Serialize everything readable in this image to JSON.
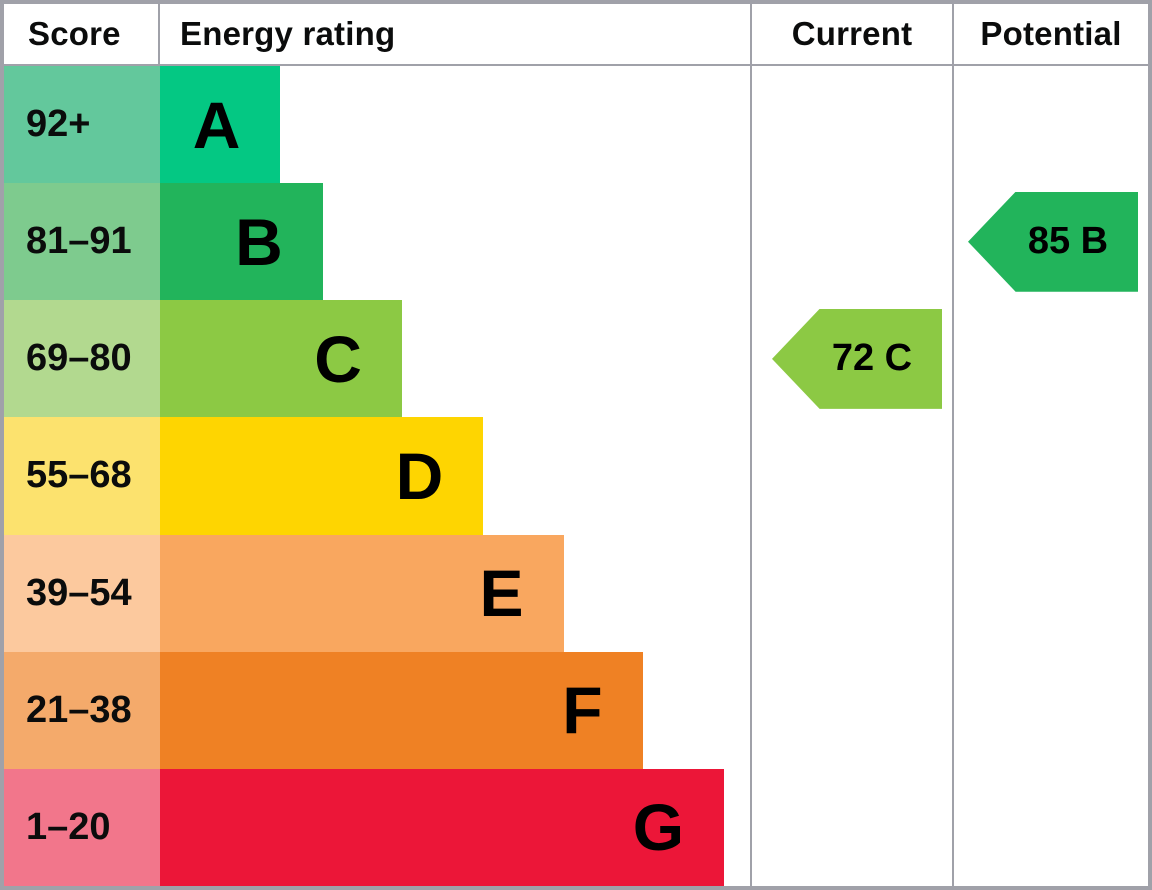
{
  "headers": {
    "score": "Score",
    "rating": "Energy rating",
    "current": "Current",
    "potential": "Potential"
  },
  "bands": [
    {
      "label": "A",
      "score": "92+",
      "bar_color": "#04c883",
      "score_cell_color": "#63c89c",
      "bar_width_pct": 20.4
    },
    {
      "label": "B",
      "score": "81–91",
      "bar_color": "#22b45b",
      "score_cell_color": "#7ecb8e",
      "bar_width_pct": 27.6
    },
    {
      "label": "C",
      "score": "69–80",
      "bar_color": "#8cc944",
      "score_cell_color": "#b2d98f",
      "bar_width_pct": 41.0
    },
    {
      "label": "D",
      "score": "55–68",
      "bar_color": "#fed501",
      "score_cell_color": "#fce26e",
      "bar_width_pct": 54.8
    },
    {
      "label": "E",
      "score": "39–54",
      "bar_color": "#f9a75f",
      "score_cell_color": "#fcc99e",
      "bar_width_pct": 68.4
    },
    {
      "label": "F",
      "score": "21–38",
      "bar_color": "#ef8124",
      "score_cell_color": "#f4aa6b",
      "bar_width_pct": 81.8
    },
    {
      "label": "G",
      "score": "1–20",
      "bar_color": "#ec1638",
      "score_cell_color": "#f2768b",
      "bar_width_pct": 95.6
    }
  ],
  "arrows": {
    "current": {
      "value": "72 C",
      "color": "#8cc944",
      "band": "C",
      "row_index": 2
    },
    "potential": {
      "value": "85 B",
      "color": "#22b45b",
      "band": "B",
      "row_index": 1
    }
  },
  "border_color": "#a0a1a9",
  "chart_data": {
    "type": "bar",
    "title": "Energy rating",
    "categories": [
      "A",
      "B",
      "C",
      "D",
      "E",
      "F",
      "G"
    ],
    "score_ranges": [
      "92+",
      "81–91",
      "69–80",
      "55–68",
      "39–54",
      "21–38",
      "1–20"
    ],
    "bar_colors": [
      "#04c883",
      "#22b45b",
      "#8cc944",
      "#fed501",
      "#f9a75f",
      "#ef8124",
      "#ec1638"
    ],
    "bar_lengths_pct": [
      20.4,
      27.6,
      41.0,
      54.8,
      68.4,
      81.8,
      95.6
    ],
    "markers": [
      {
        "column": "Current",
        "score": 72,
        "rating": "C"
      },
      {
        "column": "Potential",
        "score": 85,
        "rating": "B"
      }
    ],
    "legend_position": "none",
    "grid": false
  }
}
